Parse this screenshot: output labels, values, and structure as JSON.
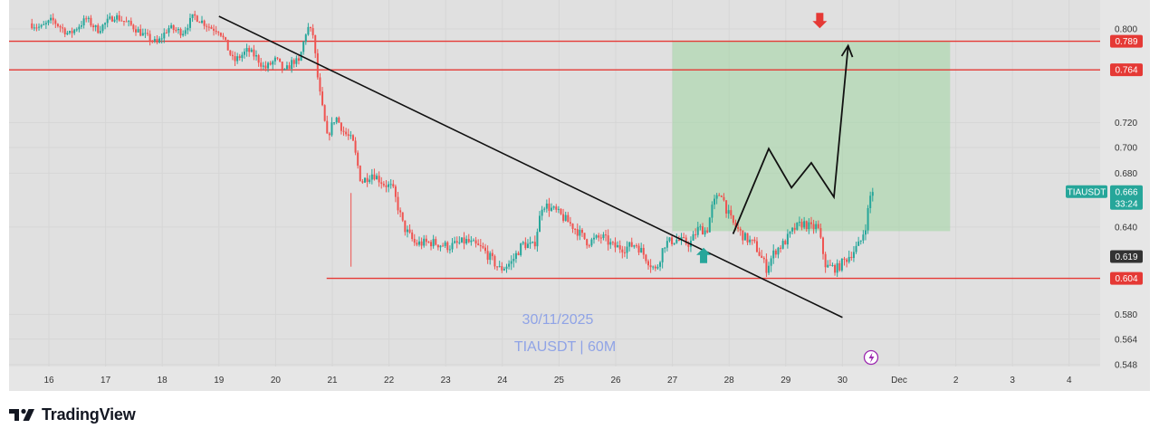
{
  "brand": {
    "name": "TradingView"
  },
  "chart_data": {
    "type": "candlestick",
    "symbol": "TIAUSDT",
    "timeframe": "60M",
    "watermark": {
      "date": "30/11/2025",
      "symbol_tf": "TIAUSDT | 60M"
    },
    "x_ticks": [
      "16",
      "17",
      "18",
      "19",
      "20",
      "21",
      "22",
      "23",
      "24",
      "25",
      "26",
      "27",
      "28",
      "29",
      "30",
      "Dec",
      "2",
      "3",
      "4"
    ],
    "y_ticks": [
      0.8,
      0.72,
      0.7,
      0.68,
      0.64,
      0.58,
      0.564,
      0.548
    ],
    "y_tick_labels": [
      "0.800",
      "0.720",
      "0.700",
      "0.680",
      "0.640",
      "0.580",
      "0.564",
      "0.548"
    ],
    "horizontal_levels": [
      {
        "value": 0.789,
        "label": "0.789",
        "color": "#e53935"
      },
      {
        "value": 0.764,
        "label": "0.764",
        "color": "#e53935"
      },
      {
        "value": 0.604,
        "label": "0.604",
        "color": "#e53935"
      }
    ],
    "price_tags": [
      {
        "symbol": "TIAUSDT",
        "value": 0.666,
        "label": "0.666",
        "countdown": "33:24",
        "color": "#26a69a"
      },
      {
        "value": 0.619,
        "label": "0.619",
        "color": "#333333"
      }
    ],
    "trendline": {
      "from": {
        "x": 19.0,
        "y": 0.8115
      },
      "to": {
        "x": 30.0,
        "y": 0.578
      }
    },
    "target_zone": {
      "x_from": 27.0,
      "x_to": 31.9,
      "y_from": 0.637,
      "y_to": 0.789,
      "color": "#a5d6a7"
    },
    "projection_path": [
      {
        "x": 28.07,
        "y": 0.635
      },
      {
        "x": 28.7,
        "y": 0.699
      },
      {
        "x": 29.1,
        "y": 0.669
      },
      {
        "x": 29.45,
        "y": 0.688
      },
      {
        "x": 29.85,
        "y": 0.662
      },
      {
        "x": 30.1,
        "y": 0.785
      }
    ],
    "markers": [
      {
        "type": "arrow-up",
        "x": 27.55,
        "y": 0.6195,
        "color": "#26a69a"
      },
      {
        "type": "arrow-down",
        "x": 29.6,
        "y": 0.808,
        "color": "#e53935"
      }
    ],
    "path": [
      [
        15.7,
        0.805
      ],
      [
        15.9,
        0.801
      ],
      [
        16.1,
        0.808
      ],
      [
        16.4,
        0.795
      ],
      [
        16.7,
        0.809
      ],
      [
        16.9,
        0.799
      ],
      [
        17.2,
        0.812
      ],
      [
        17.5,
        0.803
      ],
      [
        17.7,
        0.795
      ],
      [
        17.95,
        0.787
      ],
      [
        18.15,
        0.801
      ],
      [
        18.4,
        0.797
      ],
      [
        18.6,
        0.812
      ],
      [
        18.9,
        0.801
      ],
      [
        19.05,
        0.799
      ],
      [
        19.3,
        0.771
      ],
      [
        19.55,
        0.781
      ],
      [
        19.7,
        0.775
      ],
      [
        19.85,
        0.765
      ],
      [
        20.05,
        0.773
      ],
      [
        20.2,
        0.762
      ],
      [
        20.35,
        0.772
      ],
      [
        20.45,
        0.77
      ],
      [
        20.6,
        0.802
      ],
      [
        20.7,
        0.795
      ],
      [
        20.8,
        0.75
      ],
      [
        20.95,
        0.708
      ],
      [
        21.1,
        0.725
      ],
      [
        21.25,
        0.712
      ],
      [
        21.4,
        0.705
      ],
      [
        21.55,
        0.673
      ],
      [
        21.75,
        0.68
      ],
      [
        21.95,
        0.672
      ],
      [
        22.1,
        0.669
      ],
      [
        22.3,
        0.64
      ],
      [
        22.5,
        0.628
      ],
      [
        22.8,
        0.629
      ],
      [
        23.1,
        0.626
      ],
      [
        23.4,
        0.63
      ],
      [
        23.7,
        0.624
      ],
      [
        24.0,
        0.61
      ],
      [
        24.2,
        0.615
      ],
      [
        24.4,
        0.628
      ],
      [
        24.6,
        0.626
      ],
      [
        24.75,
        0.657
      ],
      [
        25.0,
        0.651
      ],
      [
        25.3,
        0.64
      ],
      [
        25.55,
        0.629
      ],
      [
        25.8,
        0.633
      ],
      [
        26.0,
        0.626
      ],
      [
        26.2,
        0.625
      ],
      [
        26.4,
        0.628
      ],
      [
        26.6,
        0.617
      ],
      [
        26.75,
        0.609
      ],
      [
        26.9,
        0.628
      ],
      [
        27.1,
        0.631
      ],
      [
        27.35,
        0.628
      ],
      [
        27.5,
        0.639
      ],
      [
        27.65,
        0.637
      ],
      [
        27.75,
        0.656
      ],
      [
        27.9,
        0.666
      ],
      [
        28.0,
        0.652
      ],
      [
        28.1,
        0.643
      ],
      [
        28.3,
        0.633
      ],
      [
        28.5,
        0.627
      ],
      [
        28.7,
        0.611
      ],
      [
        28.85,
        0.623
      ],
      [
        29.0,
        0.628
      ],
      [
        29.2,
        0.639
      ],
      [
        29.35,
        0.643
      ],
      [
        29.5,
        0.639
      ],
      [
        29.6,
        0.641
      ],
      [
        29.75,
        0.612
      ],
      [
        29.95,
        0.611
      ],
      [
        30.15,
        0.619
      ],
      [
        30.35,
        0.628
      ],
      [
        30.45,
        0.641
      ],
      [
        30.55,
        0.667
      ]
    ],
    "grid": true
  }
}
